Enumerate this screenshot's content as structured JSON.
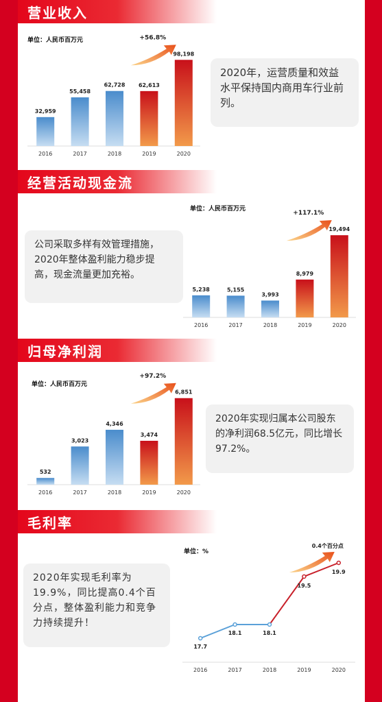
{
  "sections": [
    {
      "title": "营业收入",
      "unit": "单位：人民币百万元",
      "note": "2020年，运营质量和效益水平保持国内商用车行业前列。",
      "growth": "+56.8%"
    },
    {
      "title": "经营活动现金流",
      "unit": "单位：人民币百万元",
      "note": "公司采取多样有效管理措施，2020年整体盈利能力稳步提高，现金流量更加充裕。",
      "growth": "+117.1%"
    },
    {
      "title": "归母净利润",
      "unit": "单位：人民币百万元",
      "note": "2020年实现归属本公司股东的净利润68.5亿元，同比增长97.2%。",
      "growth": "+97.2%"
    },
    {
      "title": "毛利率",
      "unit": "单位：%",
      "note": "2020年实现毛利率为19.9%，同比提高0.4个百分点，整体盈利能力和竞争力持续提升！",
      "growth": "0.4个百分点"
    }
  ],
  "colors": {
    "red": "#d4001f",
    "blue_top": "#4a8ccc",
    "blue_bottom": "#c6ddf2",
    "red_top": "#c8101a",
    "orange_bottom": "#f29a4a",
    "line_blue": "#5aa0d8",
    "line_red": "#c8202a"
  },
  "chart_data": [
    {
      "type": "bar",
      "title": "营业收入",
      "categories": [
        "2016",
        "2017",
        "2018",
        "2019",
        "2020"
      ],
      "values": [
        32959,
        55458,
        62728,
        62613,
        98198
      ],
      "labels": [
        "32,959",
        "55,458",
        "62,728",
        "62,613",
        "98,198"
      ],
      "ylim": [
        0,
        100000
      ],
      "grid": false
    },
    {
      "type": "bar",
      "title": "经营活动现金流",
      "categories": [
        "2016",
        "2017",
        "2018",
        "2019",
        "2020"
      ],
      "values": [
        5238,
        5155,
        3993,
        8979,
        19494
      ],
      "labels": [
        "5,238",
        "5,155",
        "3,993",
        "8,979",
        "19,494"
      ],
      "ylim": [
        0,
        20000
      ],
      "grid": false
    },
    {
      "type": "bar",
      "title": "归母净利润",
      "categories": [
        "2016",
        "2017",
        "2018",
        "2019",
        "2020"
      ],
      "values": [
        532,
        3023,
        4346,
        3474,
        6851
      ],
      "labels": [
        "532",
        "3,023",
        "4,346",
        "3,474",
        "6,851"
      ],
      "ylim": [
        0,
        7000
      ],
      "grid": false
    },
    {
      "type": "line",
      "title": "毛利率",
      "categories": [
        "2016",
        "2017",
        "2018",
        "2019",
        "2020"
      ],
      "values": [
        17.7,
        18.1,
        18.1,
        19.5,
        19.9
      ],
      "labels": [
        "17.7",
        "18.1",
        "18.1",
        "19.5",
        "19.9"
      ],
      "ylim": [
        17.0,
        20.2
      ],
      "grid": false
    }
  ]
}
